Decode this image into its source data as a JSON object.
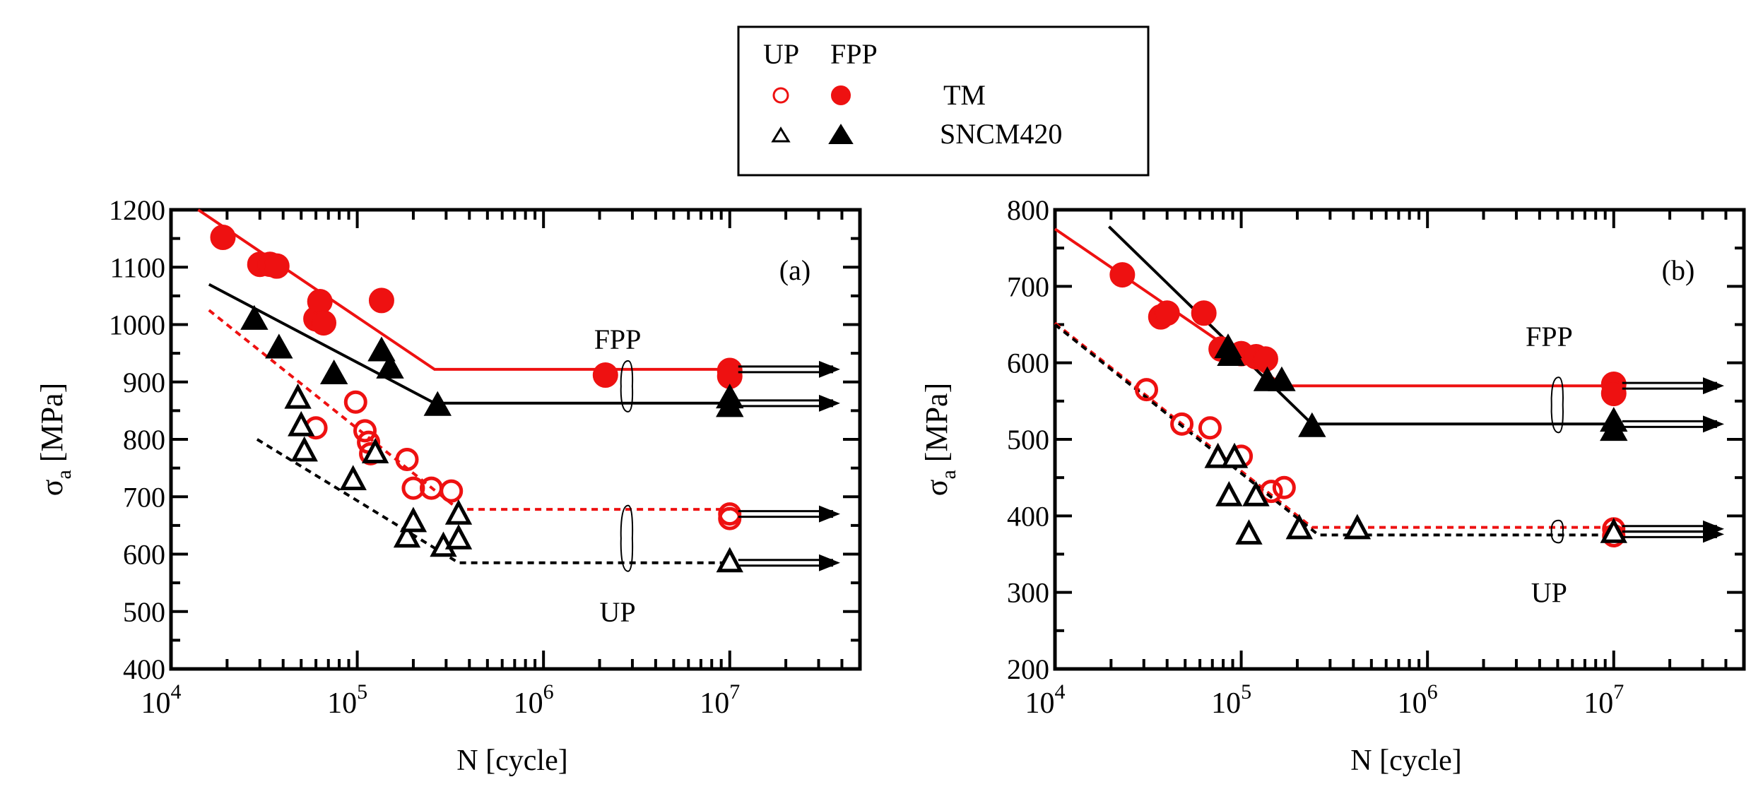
{
  "legend": {
    "header_up": "UP",
    "header_fpp": "FPP",
    "rows": [
      {
        "label": "TM",
        "color": "#ee1111",
        "up_marker": "circle-open",
        "fpp_marker": "circle-filled"
      },
      {
        "label": "SNCM420",
        "color": "#000000",
        "up_marker": "triangle-open",
        "fpp_marker": "triangle-filled"
      }
    ]
  },
  "chart_data": [
    {
      "type": "scatter",
      "panel_label": "(a)",
      "xlabel": "N [cycle]",
      "ylabel_symbol": "σ",
      "ylabel_sub": "a",
      "ylabel_unit": " [MPa]",
      "xscale": "log",
      "xlim": [
        10000,
        50000000
      ],
      "ylim": [
        400,
        1200
      ],
      "yticks": [
        "400",
        "500",
        "600",
        "700",
        "800",
        "900",
        "1000",
        "1100",
        "1200"
      ],
      "xticks": [
        {
          "base": "10",
          "exp": "4",
          "value": 10000
        },
        {
          "base": "10",
          "exp": "5",
          "value": 100000
        },
        {
          "base": "10",
          "exp": "6",
          "value": 1000000
        },
        {
          "base": "10",
          "exp": "7",
          "value": 10000000
        }
      ],
      "annotations": [
        {
          "text": "FPP",
          "at": [
            2500000,
            975
          ]
        },
        {
          "text": "UP",
          "at": [
            2500000,
            500
          ]
        }
      ],
      "series": [
        {
          "name": "TM FPP",
          "marker": "circle-filled",
          "color": "#ee1111",
          "points": [
            [
              19000,
              1152
            ],
            [
              30000,
              1105
            ],
            [
              34000,
              1105
            ],
            [
              37000,
              1102
            ],
            [
              60000,
              1010
            ],
            [
              63000,
              1040
            ],
            [
              66000,
              1003
            ],
            [
              135000,
              1042
            ],
            [
              2150000,
              912
            ],
            [
              10000000,
              920
            ],
            [
              10000000,
              910
            ]
          ],
          "fit": [
            [
              14000,
              1200
            ],
            [
              260000,
              922
            ],
            [
              10000000,
              922
            ]
          ],
          "runout": [
            10000000,
            922
          ]
        },
        {
          "name": "SNCM420 FPP",
          "marker": "triangle-filled",
          "color": "#000000",
          "points": [
            [
              28000,
              1007
            ],
            [
              38000,
              957
            ],
            [
              75000,
              912
            ],
            [
              135000,
              952
            ],
            [
              150000,
              922
            ],
            [
              270000,
              857
            ],
            [
              10000000,
              870
            ],
            [
              10000000,
              855
            ]
          ],
          "fit": [
            [
              16000,
              1070
            ],
            [
              260000,
              863
            ],
            [
              10000000,
              863
            ]
          ],
          "runout": [
            10000000,
            863
          ]
        },
        {
          "name": "TM UP",
          "marker": "circle-open",
          "color": "#ee1111",
          "points": [
            [
              60000,
              820
            ],
            [
              98000,
              865
            ],
            [
              110000,
              815
            ],
            [
              115000,
              795
            ],
            [
              118000,
              775
            ],
            [
              185000,
              765
            ],
            [
              200000,
              715
            ],
            [
              250000,
              715
            ],
            [
              320000,
              710
            ],
            [
              10000000,
              670
            ],
            [
              10000000,
              662
            ]
          ],
          "fit": [
            [
              16000,
              1025
            ],
            [
              350000,
              678
            ],
            [
              10000000,
              678
            ]
          ],
          "dashed": true,
          "runout": [
            10000000,
            670
          ]
        },
        {
          "name": "SNCM420 UP",
          "marker": "triangle-open",
          "color": "#000000",
          "points": [
            [
              48000,
              870
            ],
            [
              50000,
              822
            ],
            [
              52000,
              778
            ],
            [
              95000,
              728
            ],
            [
              125000,
              775
            ],
            [
              185000,
              628
            ],
            [
              200000,
              655
            ],
            [
              290000,
              612
            ],
            [
              350000,
              625
            ],
            [
              350000,
              668
            ],
            [
              10000000,
              585
            ]
          ],
          "fit": [
            [
              29000,
              800
            ],
            [
              350000,
              585
            ],
            [
              10000000,
              585
            ]
          ],
          "dashed": true,
          "runout": [
            10000000,
            585
          ]
        }
      ]
    },
    {
      "type": "scatter",
      "panel_label": "(b)",
      "xlabel": "N [cycle]",
      "ylabel_symbol": "σ",
      "ylabel_sub": "a",
      "ylabel_unit": " [MPa]",
      "xscale": "log",
      "xlim": [
        10000,
        50000000
      ],
      "ylim": [
        200,
        800
      ],
      "yticks": [
        "200",
        "300",
        "400",
        "500",
        "600",
        "700",
        "800"
      ],
      "xticks": [
        {
          "base": "10",
          "exp": "4",
          "value": 10000
        },
        {
          "base": "10",
          "exp": "5",
          "value": 100000
        },
        {
          "base": "10",
          "exp": "6",
          "value": 1000000
        },
        {
          "base": "10",
          "exp": "7",
          "value": 10000000
        }
      ],
      "annotations": [
        {
          "text": "FPP",
          "at": [
            4500000,
            635
          ]
        },
        {
          "text": "UP",
          "at": [
            4500000,
            300
          ]
        }
      ],
      "series": [
        {
          "name": "TM FPP",
          "marker": "circle-filled",
          "color": "#ee1111",
          "points": [
            [
              23000,
              715
            ],
            [
              37000,
              660
            ],
            [
              40000,
              665
            ],
            [
              63000,
              665
            ],
            [
              78000,
              618
            ],
            [
              100000,
              612
            ],
            [
              120000,
              608
            ],
            [
              135000,
              605
            ],
            [
              10000000,
              572
            ],
            [
              10000000,
              560
            ]
          ],
          "fit": [
            [
              10000,
              775
            ],
            [
              170000,
              570
            ],
            [
              10000000,
              570
            ]
          ],
          "runout": [
            10000000,
            570
          ]
        },
        {
          "name": "SNCM420 FPP",
          "marker": "triangle-filled",
          "color": "#000000",
          "points": [
            [
              85000,
              618
            ],
            [
              88000,
              608
            ],
            [
              138000,
              575
            ],
            [
              165000,
              575
            ],
            [
              240000,
              515
            ],
            [
              10000000,
              522
            ],
            [
              10000000,
              510
            ]
          ],
          "fit": [
            [
              19500,
              778
            ],
            [
              240000,
              520
            ],
            [
              10000000,
              520
            ]
          ],
          "runout": [
            10000000,
            520
          ]
        },
        {
          "name": "TM UP",
          "marker": "circle-open",
          "color": "#ee1111",
          "points": [
            [
              31000,
              565
            ],
            [
              48000,
              520
            ],
            [
              68000,
              515
            ],
            [
              100000,
              478
            ],
            [
              145000,
              432
            ],
            [
              170000,
              437
            ],
            [
              10000000,
              383
            ],
            [
              10000000,
              374
            ]
          ],
          "fit": [
            [
              10000,
              652
            ],
            [
              240000,
              385
            ],
            [
              10000000,
              385
            ]
          ],
          "dashed": true,
          "runout": [
            10000000,
            383
          ]
        },
        {
          "name": "SNCM420 UP",
          "marker": "triangle-open",
          "color": "#000000",
          "points": [
            [
              75000,
              475
            ],
            [
              92000,
              475
            ],
            [
              86000,
              425
            ],
            [
              110000,
              375
            ],
            [
              120000,
              425
            ],
            [
              205000,
              382
            ],
            [
              420000,
              382
            ],
            [
              10000000,
              377
            ]
          ],
          "fit": [
            [
              10000,
              650
            ],
            [
              260000,
              375
            ],
            [
              10000000,
              375
            ]
          ],
          "dashed": true,
          "runout": [
            10000000,
            376
          ]
        }
      ]
    }
  ]
}
